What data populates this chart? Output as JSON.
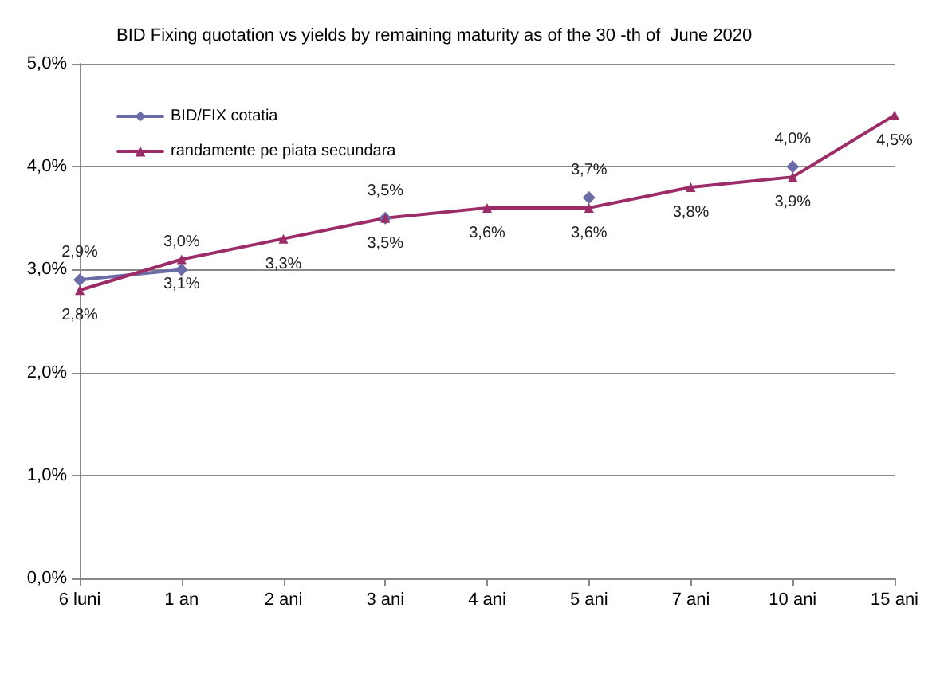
{
  "chart_data": {
    "type": "line",
    "title": "BID Fixing quotation vs yields by remaining maturity as of the 30 -th of  June 2020",
    "categories": [
      "6 luni",
      "1 an",
      "2 ani",
      "3 ani",
      "4 ani",
      "5 ani",
      "7 ani",
      "10 ani",
      "15 ani"
    ],
    "series": [
      {
        "name": "BID/FIX cotatia",
        "color": "#6b6ba8",
        "marker": "diamond",
        "values": [
          2.9,
          3.0,
          null,
          3.5,
          null,
          3.7,
          null,
          4.0,
          null
        ],
        "value_labels": [
          "2,9%",
          "3,0%",
          null,
          "3,5%",
          null,
          "3,7%",
          null,
          "4,0%",
          null
        ]
      },
      {
        "name": "randamente pe piata secundara",
        "color": "#9b2c68",
        "marker": "triangle",
        "values": [
          2.8,
          3.1,
          3.3,
          3.5,
          3.6,
          3.6,
          3.8,
          3.9,
          4.5
        ],
        "value_labels": [
          "2,8%",
          "3,1%",
          "3,3%",
          "3,5%",
          "3,6%",
          "3,6%",
          "3,8%",
          "3,9%",
          "4,5%"
        ]
      }
    ],
    "ylim": [
      0,
      5
    ],
    "yticks": [
      {
        "value": 0,
        "label": "0,0%"
      },
      {
        "value": 1,
        "label": "1,0%"
      },
      {
        "value": 2,
        "label": "2,0%"
      },
      {
        "value": 3,
        "label": "3,0%"
      },
      {
        "value": 4,
        "label": "4,0%"
      },
      {
        "value": 5,
        "label": "5,0%"
      }
    ],
    "grid": "y",
    "legend": "top left"
  }
}
